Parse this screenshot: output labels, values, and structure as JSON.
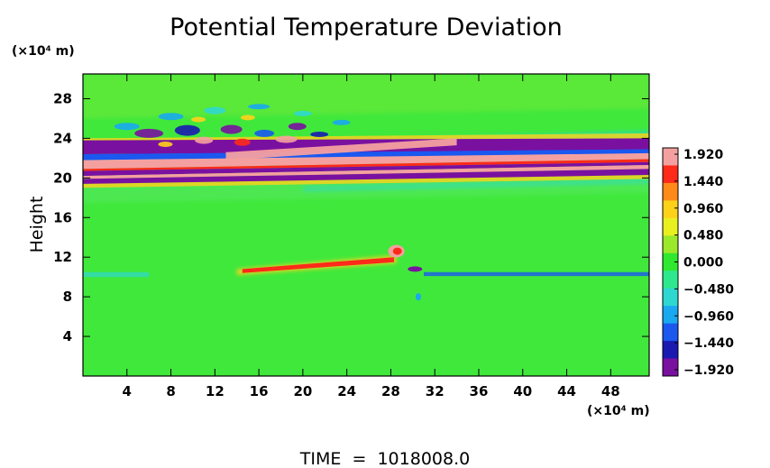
{
  "chart_data": {
    "type": "heatmap",
    "title": "Potential Temperature Deviation",
    "ylabel": "Height",
    "x_unit": "(×10⁴ m)",
    "y_unit": "(×10⁴ m)",
    "xlim": [
      0,
      51.5
    ],
    "ylim": [
      0,
      30.5
    ],
    "x_ticks": [
      4,
      8,
      12,
      16,
      20,
      24,
      28,
      32,
      36,
      40,
      44,
      48
    ],
    "y_ticks": [
      4,
      8,
      12,
      16,
      20,
      24,
      28
    ],
    "colorbar": {
      "labels": [
        1.92,
        1.44,
        0.96,
        0.48,
        0.0,
        -0.48,
        -0.96,
        -1.44,
        -1.92
      ],
      "label_text": [
        "1.920",
        "1.440",
        "0.960",
        "0.480",
        "0.000",
        "−0.480",
        "−0.960",
        "−1.440",
        "−1.920"
      ],
      "colors": [
        "#f4a0a0",
        "#ff2a1a",
        "#ff8a1a",
        "#ffd21a",
        "#e8f020",
        "#9ce82a",
        "#30e830",
        "#2ee88e",
        "#2ed8d0",
        "#1aa8f0",
        "#1a58f0",
        "#1a1ab0",
        "#7a10a0"
      ]
    },
    "features": [
      {
        "name": "upper positive layer",
        "value": 1.92,
        "x_range": [
          0,
          51.5
        ],
        "y_center_start": 21.0,
        "y_center_end": 22.8
      },
      {
        "name": "upper negative layer",
        "value": -1.92,
        "x_range": [
          0,
          51.5
        ],
        "y_center_start": 20.3,
        "y_center_end": 22.2
      },
      {
        "name": "mid-level positive streak",
        "value": 1.44,
        "x_range": [
          14,
          28.5
        ],
        "y_center": 10.6
      },
      {
        "name": "mid-level negative streak",
        "value": -0.96,
        "x_range": [
          31,
          51.5
        ],
        "y_center": 10.3
      }
    ],
    "footer": "TIME  =  1018008.0"
  }
}
